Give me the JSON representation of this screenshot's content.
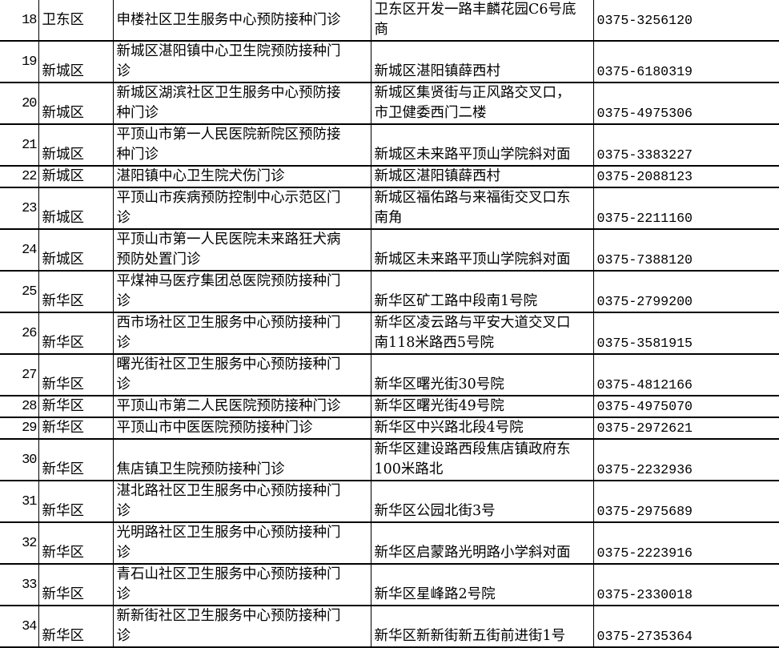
{
  "rows": [
    {
      "no": "18",
      "district": "卫东区",
      "name": "申楼社区卫生服务中心预防接种门诊",
      "address": "卫东区开发一路丰麟花园C6号底\n商",
      "phone": "0375-3256120"
    },
    {
      "no": "19",
      "district": "新城区",
      "name": "新城区湛阳镇中心卫生院预防接种门\n诊",
      "address": "新城区湛阳镇薛西村",
      "phone": "0375-6180319"
    },
    {
      "no": "20",
      "district": "新城区",
      "name": "新城区湖滨社区卫生服务中心预防接\n种门诊",
      "address": "新城区集贤街与正风路交叉口，\n市卫健委西门二楼",
      "phone": "0375-4975306"
    },
    {
      "no": "21",
      "district": "新城区",
      "name": "平顶山市第一人民医院新院区预防接\n种门诊",
      "address": "新城区未来路平顶山学院斜对面",
      "phone": "0375-3383227"
    },
    {
      "no": "22",
      "district": "新城区",
      "name": "湛阳镇中心卫生院犬伤门诊",
      "address": "新城区湛阳镇薛西村",
      "phone": "0375-2088123"
    },
    {
      "no": "23",
      "district": "新城区",
      "name": "平顶山市疾病预防控制中心示范区门\n诊",
      "address": "新城区福佑路与来福街交叉口东\n南角",
      "phone": "0375-2211160"
    },
    {
      "no": "24",
      "district": "新城区",
      "name": "平顶山市第一人民医院未来路狂犬病\n预防处置门诊",
      "address": "新城区未来路平顶山学院斜对面",
      "phone": "0375-7388120"
    },
    {
      "no": "25",
      "district": "新华区",
      "name": "平煤神马医疗集团总医院预防接种门\n诊",
      "address": "新华区矿工路中段南1号院",
      "phone": "0375-2799200"
    },
    {
      "no": "26",
      "district": "新华区",
      "name": "西市场社区卫生服务中心预防接种门\n诊",
      "address": "新华区凌云路与平安大道交叉口\n南118米路西5号院",
      "phone": "0375-3581915"
    },
    {
      "no": "27",
      "district": "新华区",
      "name": "曙光街社区卫生服务中心预防接种门\n诊",
      "address": "新华区曙光街30号院",
      "phone": "0375-4812166"
    },
    {
      "no": "28",
      "district": "新华区",
      "name": "平顶山市第二人民医院预防接种门诊",
      "address": "新华区曙光街49号院",
      "phone": "0375-4975070"
    },
    {
      "no": "29",
      "district": "新华区",
      "name": "平顶山市中医医院预防接种门诊",
      "address": "新华区中兴路北段4号院",
      "phone": "0375-2972621"
    },
    {
      "no": "30",
      "district": "新华区",
      "name": "焦店镇卫生院预防接种门诊",
      "address": "新华区建设路西段焦店镇政府东\n100米路北",
      "phone": "0375-2232936"
    },
    {
      "no": "31",
      "district": "新华区",
      "name": "湛北路社区卫生服务中心预防接种门\n诊",
      "address": "新华区公园北街3号",
      "phone": "0375-2975689"
    },
    {
      "no": "32",
      "district": "新华区",
      "name": "光明路社区卫生服务中心预防接种门\n诊",
      "address": "新华区启蒙路光明路小学斜对面",
      "phone": "0375-2223916"
    },
    {
      "no": "33",
      "district": "新华区",
      "name": "青石山社区卫生服务中心预防接种门\n诊",
      "address": "新华区星峰路2号院",
      "phone": "0375-2330018"
    },
    {
      "no": "34",
      "district": "新华区",
      "name": "新新街社区卫生服务中心预防接种门\n诊",
      "address": "新华区新新街新五街前进街1号",
      "phone": "0375-2735364"
    }
  ]
}
